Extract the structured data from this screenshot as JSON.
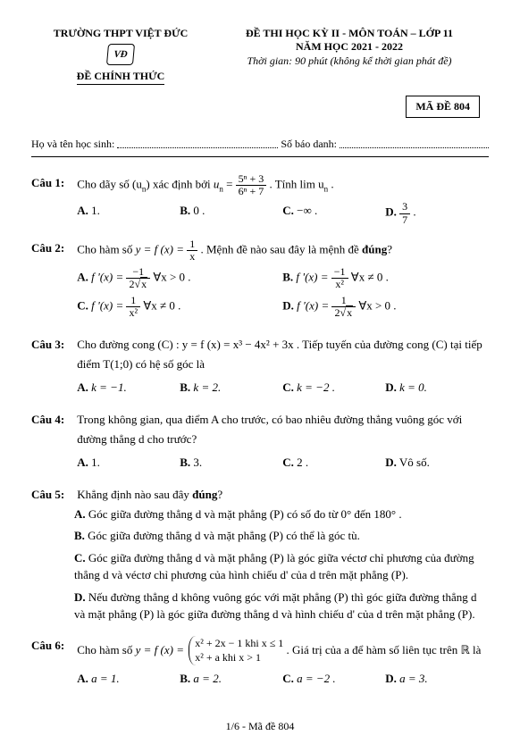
{
  "header": {
    "school": "TRƯỜNG THPT VIỆT ĐỨC",
    "logo": "VĐ",
    "official": "ĐỀ CHÍNH THỨC",
    "title": "ĐỀ THI HỌC KỲ II - MÔN TOÁN – LỚP 11",
    "year": "NĂM HỌC 2021 - 2022",
    "time": "Thời gian: 90 phút (không kể thời gian phát đề)",
    "code": "MÃ ĐỀ 804",
    "name_label": "Họ và tên học sinh:",
    "id_label": "Số báo danh:"
  },
  "q1": {
    "label": "Câu 1:",
    "text_a": "Cho dãy số ",
    "seq": "(u",
    "seq_sub": "n",
    "seq_close": ") ",
    "text_b": "xác định bởi ",
    "un": "u",
    "un_sub": "n",
    "eq": " = ",
    "frac_num": "5ⁿ + 3",
    "frac_den": "6ⁿ + 7",
    "text_c": ". Tính lim u",
    "text_c_sub": "n",
    "text_d": " .",
    "A": "1.",
    "B": "0 .",
    "C": "−∞ .",
    "D_num": "3",
    "D_den": "7",
    "D_end": "."
  },
  "q2": {
    "label": "Câu 2:",
    "text_a": "Cho hàm số ",
    "yfx": "y = f (x) = ",
    "f_num": "1",
    "f_den": "x",
    "text_b": ". Mệnh đề nào sau đây là mệnh đề ",
    "bold": "đúng",
    "text_c": "?",
    "A_pre": "f '(x) = ",
    "A_num": "−1",
    "A_den_pre": "2",
    "A_den_sqrt": "x",
    "A_cond": "   ∀x > 0 .",
    "B_pre": "f '(x) = ",
    "B_num": "−1",
    "B_den": "x²",
    "B_cond": "   ∀x ≠ 0 .",
    "C_pre": "f '(x) = ",
    "C_num": "1",
    "C_den": "x²",
    "C_cond": "   ∀x ≠ 0 .",
    "D_pre": "f '(x) = ",
    "D_num": "1",
    "D_den_pre": "2",
    "D_den_sqrt": "x",
    "D_cond": "   ∀x > 0 ."
  },
  "q3": {
    "label": "Câu 3:",
    "text": "Cho đường cong (C) : y = f (x) = x³ − 4x² + 3x . Tiếp tuyến của đường cong (C) tại tiếp điểm T(1;0) có hệ số góc là",
    "A": "k = −1.",
    "B": "k = 2.",
    "C": "k = −2 .",
    "D": "k = 0."
  },
  "q4": {
    "label": "Câu 4:",
    "text": "Trong không gian, qua điểm A cho trước, có bao nhiêu đường thẳng vuông góc với đường thẳng d cho trước?",
    "A": "1.",
    "B": "3.",
    "C": "2 .",
    "D": "Vô số."
  },
  "q5": {
    "label": "Câu 5:",
    "text_a": "Khẳng định nào sau đây ",
    "bold": "đúng",
    "text_b": "?",
    "A": "Góc giữa đường thẳng  d  và mặt phẳng (P) có số đo từ 0° đến 180° .",
    "B": "Góc giữa đường thẳng  d  và mặt phẳng (P) có thể là góc tù.",
    "C": "Góc giữa đường thẳng  d  và mặt phẳng (P) là góc giữa véctơ chỉ phương của đường thẳng d và véctơ chỉ phương của hình chiếu  d'  của  d  trên mặt phẳng (P).",
    "D": "Nếu đường thẳng  d  không vuông góc với mặt phẳng (P) thì góc giữa đường thẳng  d  và mặt phẳng (P) là góc giữa đường thẳng  d  và hình chiếu  d'  của  d  trên mặt phẳng (P)."
  },
  "q6": {
    "label": "Câu 6:",
    "text_a": "Cho hàm số ",
    "yfx": "y = f (x) = ",
    "p1": "x² + 2x − 1   khi x ≤ 1",
    "p2": "x² + a          khi  x > 1",
    "text_b": ". Giá trị của a để hàm số liên tục trên ℝ là",
    "A": "a = 1.",
    "B": "a = 2.",
    "C": "a = −2 .",
    "D": "a = 3."
  },
  "labels": {
    "A": "A.",
    "B": "B.",
    "C": "C.",
    "D": "D."
  },
  "footer": "1/6 - Mã đề 804"
}
